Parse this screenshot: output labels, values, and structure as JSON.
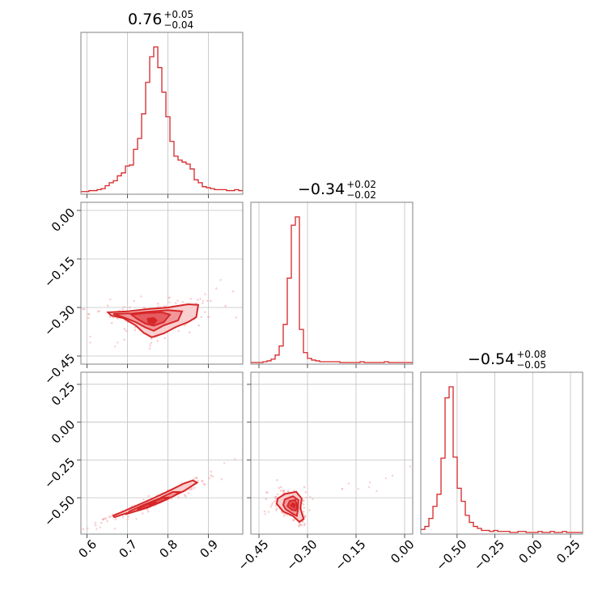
{
  "chart_data": {
    "type": "scatter",
    "color": "#d62728",
    "fill_colors": [
      "#f9cfd0",
      "#f1979a",
      "#e65b5f",
      "#d62728"
    ],
    "grid": true,
    "parameters": [
      {
        "title_value": "0.76",
        "title_plus": "+0.05",
        "title_minus": "−0.04",
        "range": [
          0.585,
          0.985
        ],
        "ticks": [
          0.6,
          0.7,
          0.8,
          0.9
        ],
        "tick_labels": [
          "0.6",
          "0.7",
          "0.8",
          "0.9"
        ]
      },
      {
        "title_value": "−0.34",
        "title_plus": "+0.02",
        "title_minus": "−0.02",
        "range": [
          -0.475,
          0.025
        ],
        "ticks": [
          -0.45,
          -0.3,
          -0.15,
          0.0
        ],
        "tick_labels": [
          "−0.45",
          "−0.30",
          "−0.15",
          "0.00"
        ]
      },
      {
        "title_value": "−0.54",
        "title_plus": "+0.08",
        "title_minus": "−0.05",
        "range": [
          -0.74,
          0.33
        ],
        "ticks": [
          -0.5,
          -0.25,
          0.0,
          0.25
        ],
        "tick_labels": [
          "−0.50",
          "−0.25",
          "0.00",
          "0.25"
        ]
      }
    ],
    "histograms": [
      {
        "param": 0,
        "bin_edges": [
          0.585,
          0.595,
          0.605,
          0.615,
          0.625,
          0.635,
          0.645,
          0.655,
          0.665,
          0.675,
          0.685,
          0.695,
          0.705,
          0.715,
          0.725,
          0.735,
          0.745,
          0.755,
          0.765,
          0.775,
          0.785,
          0.795,
          0.805,
          0.815,
          0.825,
          0.835,
          0.845,
          0.855,
          0.865,
          0.875,
          0.885,
          0.895,
          0.905,
          0.915,
          0.925,
          0.935,
          0.945,
          0.955,
          0.965,
          0.975,
          0.985
        ],
        "counts": [
          1,
          1,
          2,
          2,
          3,
          4,
          7,
          10,
          12,
          17,
          20,
          27,
          28,
          44,
          55,
          80,
          112,
          138,
          148,
          127,
          102,
          77,
          52,
          37,
          33,
          31,
          29,
          24,
          13,
          10,
          6,
          5,
          4,
          3,
          3,
          3,
          2,
          2,
          3,
          2
        ]
      },
      {
        "param": 1,
        "bin_edges": [
          -0.475,
          -0.4625,
          -0.45,
          -0.4375,
          -0.425,
          -0.4125,
          -0.4,
          -0.3875,
          -0.375,
          -0.3625,
          -0.35,
          -0.3375,
          -0.325,
          -0.3125,
          -0.3,
          -0.2875,
          -0.275,
          -0.2625,
          -0.25,
          -0.2375,
          -0.225,
          -0.2125,
          -0.2,
          -0.1875,
          -0.175,
          -0.1625,
          -0.15,
          -0.1375,
          -0.125,
          -0.1125,
          -0.1,
          -0.0875,
          -0.075,
          -0.0625,
          -0.05,
          -0.0375,
          -0.025,
          -0.0125,
          0.0,
          0.0125,
          0.025
        ],
        "counts": [
          0,
          0,
          0,
          1,
          2,
          4,
          9,
          20,
          46,
          102,
          166,
          176,
          40,
          12,
          5,
          3,
          2,
          1,
          1,
          1,
          1,
          1,
          0,
          0,
          0,
          0,
          0,
          1,
          0,
          0,
          0,
          0,
          0,
          1,
          0,
          0,
          0,
          0,
          0,
          0
        ]
      },
      {
        "param": 2,
        "bin_edges": [
          -0.74,
          -0.71325,
          -0.6865,
          -0.65975,
          -0.633,
          -0.60625,
          -0.5795,
          -0.55275,
          -0.526,
          -0.49925,
          -0.4725,
          -0.44575,
          -0.419,
          -0.39225,
          -0.3655,
          -0.33875,
          -0.312,
          -0.28525,
          -0.2585,
          -0.23175,
          -0.205,
          -0.17825,
          -0.1515,
          -0.12475,
          -0.098,
          -0.07125,
          -0.0445,
          -0.01775,
          0.009,
          0.03575,
          0.0625,
          0.08925,
          0.116,
          0.14275,
          0.1695,
          0.19625,
          0.223,
          0.24975,
          0.2765,
          0.30325,
          0.33
        ],
        "counts": [
          3,
          6,
          14,
          26,
          38,
          74,
          134,
          145,
          75,
          44,
          31,
          17,
          10,
          6,
          4,
          2,
          2,
          1,
          2,
          1,
          1,
          1,
          0,
          0,
          1,
          1,
          0,
          0,
          0,
          1,
          0,
          0,
          1,
          0,
          0,
          1,
          0,
          0,
          0,
          0
        ]
      }
    ],
    "panels": [
      {
        "x_param": 0,
        "y_param": 1,
        "center": [
          0.76,
          -0.34
        ],
        "contours": [
          [
            [
              0.652,
              -0.315
            ],
            [
              0.7,
              -0.312
            ],
            [
              0.75,
              -0.305
            ],
            [
              0.8,
              -0.3
            ],
            [
              0.85,
              -0.29
            ],
            [
              0.875,
              -0.292
            ],
            [
              0.87,
              -0.33
            ],
            [
              0.85,
              -0.345
            ],
            [
              0.82,
              -0.36
            ],
            [
              0.79,
              -0.38
            ],
            [
              0.76,
              -0.392
            ],
            [
              0.74,
              -0.378
            ],
            [
              0.72,
              -0.355
            ],
            [
              0.69,
              -0.333
            ],
            [
              0.66,
              -0.325
            ]
          ],
          [
            [
              0.665,
              -0.32
            ],
            [
              0.71,
              -0.318
            ],
            [
              0.75,
              -0.313
            ],
            [
              0.8,
              -0.308
            ],
            [
              0.835,
              -0.312
            ],
            [
              0.825,
              -0.34
            ],
            [
              0.79,
              -0.355
            ],
            [
              0.765,
              -0.372
            ],
            [
              0.745,
              -0.362
            ],
            [
              0.72,
              -0.345
            ],
            [
              0.69,
              -0.33
            ]
          ],
          [
            [
              0.71,
              -0.322
            ],
            [
              0.745,
              -0.317
            ],
            [
              0.785,
              -0.315
            ],
            [
              0.805,
              -0.322
            ],
            [
              0.79,
              -0.345
            ],
            [
              0.765,
              -0.356
            ],
            [
              0.745,
              -0.35
            ],
            [
              0.725,
              -0.336
            ]
          ],
          [
            [
              0.75,
              -0.335
            ],
            [
              0.765,
              -0.332
            ],
            [
              0.772,
              -0.34
            ],
            [
              0.765,
              -0.35
            ],
            [
              0.752,
              -0.346
            ]
          ]
        ]
      },
      {
        "x_param": 0,
        "y_param": 2,
        "center": [
          0.76,
          -0.54
        ],
        "contours": [
          [
            [
              0.668,
              -0.628
            ],
            [
              0.7,
              -0.6
            ],
            [
              0.75,
              -0.565
            ],
            [
              0.8,
              -0.505
            ],
            [
              0.84,
              -0.455
            ],
            [
              0.872,
              -0.4
            ],
            [
              0.862,
              -0.385
            ],
            [
              0.84,
              -0.405
            ],
            [
              0.8,
              -0.458
            ],
            [
              0.76,
              -0.508
            ],
            [
              0.72,
              -0.555
            ],
            [
              0.69,
              -0.59
            ],
            [
              0.665,
              -0.618
            ]
          ],
          [
            [
              0.7,
              -0.605
            ],
            [
              0.74,
              -0.573
            ],
            [
              0.78,
              -0.532
            ],
            [
              0.815,
              -0.488
            ],
            [
              0.828,
              -0.462
            ],
            [
              0.812,
              -0.462
            ],
            [
              0.78,
              -0.503
            ],
            [
              0.74,
              -0.547
            ],
            [
              0.705,
              -0.59
            ]
          ],
          [
            [
              0.725,
              -0.582
            ],
            [
              0.76,
              -0.552
            ],
            [
              0.795,
              -0.512
            ],
            [
              0.8,
              -0.498
            ],
            [
              0.785,
              -0.502
            ],
            [
              0.755,
              -0.537
            ],
            [
              0.728,
              -0.568
            ]
          ],
          [
            [
              0.755,
              -0.552
            ],
            [
              0.772,
              -0.535
            ],
            [
              0.768,
              -0.528
            ],
            [
              0.752,
              -0.544
            ]
          ]
        ]
      },
      {
        "x_param": 1,
        "y_param": 2,
        "center": [
          -0.34,
          -0.54
        ],
        "contours": [
          [
            [
              -0.395,
              -0.54
            ],
            [
              -0.392,
              -0.505
            ],
            [
              -0.37,
              -0.475
            ],
            [
              -0.335,
              -0.46
            ],
            [
              -0.318,
              -0.505
            ],
            [
              -0.322,
              -0.57
            ],
            [
              -0.312,
              -0.64
            ],
            [
              -0.325,
              -0.66
            ],
            [
              -0.345,
              -0.62
            ],
            [
              -0.375,
              -0.59
            ]
          ],
          [
            [
              -0.375,
              -0.548
            ],
            [
              -0.37,
              -0.51
            ],
            [
              -0.345,
              -0.49
            ],
            [
              -0.328,
              -0.515
            ],
            [
              -0.33,
              -0.585
            ],
            [
              -0.333,
              -0.62
            ],
            [
              -0.35,
              -0.6
            ],
            [
              -0.368,
              -0.575
            ]
          ],
          [
            [
              -0.362,
              -0.555
            ],
            [
              -0.355,
              -0.522
            ],
            [
              -0.338,
              -0.515
            ],
            [
              -0.332,
              -0.545
            ],
            [
              -0.336,
              -0.585
            ],
            [
              -0.348,
              -0.58
            ]
          ],
          [
            [
              -0.352,
              -0.55
            ],
            [
              -0.345,
              -0.535
            ],
            [
              -0.338,
              -0.545
            ],
            [
              -0.342,
              -0.565
            ]
          ]
        ]
      }
    ]
  }
}
